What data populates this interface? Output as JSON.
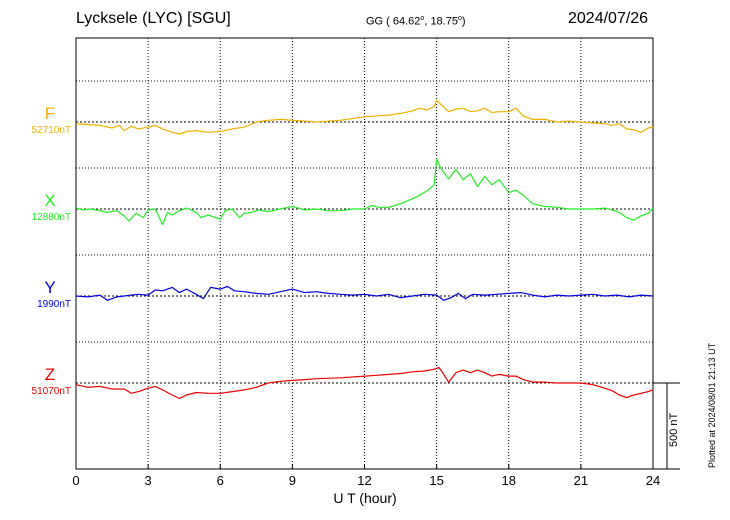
{
  "header": {
    "station": "Lycksele (LYC)  [SGU]",
    "coords_prefix": "GG ( 64.62",
    "coords_mid": ",  18.75",
    "coords_suffix": ")",
    "degree": "o",
    "date": "2024/07/26"
  },
  "footer": {
    "plotted_at": "Plotted at 2024/08/01 21:13 UT",
    "scale_label": "500 nT"
  },
  "chart_data": {
    "type": "line",
    "title": "Lycksele (LYC)  [SGU]",
    "xlabel": "U T (hour)",
    "ylabel": "",
    "xlim": [
      0,
      24
    ],
    "x_ticks": [
      0,
      3,
      6,
      9,
      12,
      15,
      18,
      21,
      24
    ],
    "x_tick_labels": [
      "0",
      "3",
      "6",
      "9",
      "12",
      "15",
      "18",
      "21",
      "24"
    ],
    "grid": true,
    "scale_bar_nT": 500,
    "units": "nT",
    "series": [
      {
        "name": "F",
        "baseline_label": "52710nT",
        "baseline_nT": 52710,
        "color": "#f0b000",
        "x": [
          0,
          0.5,
          1,
          1.5,
          1.8,
          2,
          2.3,
          2.6,
          3,
          3.3,
          3.6,
          4,
          4.3,
          4.6,
          5,
          5.5,
          6,
          6.5,
          7,
          7.5,
          8,
          8.5,
          9,
          9.5,
          10,
          11,
          12,
          12.5,
          13,
          13.5,
          14,
          14.3,
          14.6,
          14.9,
          15,
          15.2,
          15.5,
          15.8,
          16.1,
          16.4,
          16.7,
          17,
          17.3,
          17.6,
          18,
          18.3,
          18.6,
          19,
          19.5,
          20,
          20.5,
          21,
          21.5,
          22,
          22.3,
          22.6,
          22.9,
          23.2,
          23.5,
          23.8,
          24
        ],
        "values": [
          52700,
          52695,
          52690,
          52675,
          52690,
          52660,
          52685,
          52670,
          52680,
          52690,
          52670,
          52650,
          52640,
          52655,
          52660,
          52650,
          52655,
          52670,
          52680,
          52710,
          52720,
          52725,
          52720,
          52715,
          52710,
          52720,
          52740,
          52745,
          52750,
          52760,
          52775,
          52790,
          52780,
          52800,
          52835,
          52810,
          52770,
          52785,
          52790,
          52770,
          52775,
          52790,
          52765,
          52770,
          52770,
          52790,
          52745,
          52725,
          52725,
          52710,
          52715,
          52710,
          52705,
          52700,
          52690,
          52700,
          52670,
          52665,
          52650,
          52675,
          52680
        ]
      },
      {
        "name": "X",
        "baseline_label": "12880nT",
        "baseline_nT": 12880,
        "color": "#22ee22",
        "x": [
          0,
          0.3,
          0.6,
          1,
          1.3,
          1.7,
          2,
          2.2,
          2.5,
          2.8,
          3,
          3.3,
          3.6,
          3.8,
          4,
          4.3,
          4.6,
          5,
          5.2,
          5.5,
          6,
          6.2,
          6.5,
          6.8,
          7,
          7.3,
          7.6,
          8,
          8.5,
          9,
          9.5,
          10,
          10.5,
          11,
          11.5,
          12,
          12.3,
          12.6,
          13,
          13.5,
          14,
          14.3,
          14.6,
          14.9,
          15,
          15.2,
          15.5,
          15.8,
          16.1,
          16.4,
          16.7,
          17,
          17.3,
          17.6,
          18,
          18.3,
          18.6,
          19,
          19.5,
          20,
          20.5,
          21,
          21.5,
          22,
          22.3,
          22.6,
          22.9,
          23.2,
          23.5,
          23.8,
          24
        ],
        "values": [
          12885,
          12875,
          12880,
          12870,
          12860,
          12870,
          12840,
          12810,
          12855,
          12830,
          12875,
          12880,
          12790,
          12860,
          12845,
          12870,
          12885,
          12860,
          12830,
          12845,
          12820,
          12870,
          12880,
          12830,
          12855,
          12860,
          12875,
          12865,
          12880,
          12895,
          12875,
          12880,
          12870,
          12870,
          12880,
          12880,
          12900,
          12890,
          12890,
          12910,
          12940,
          12960,
          12985,
          13020,
          13170,
          13110,
          13055,
          13110,
          13050,
          13085,
          13010,
          13070,
          13020,
          13050,
          12975,
          12990,
          12960,
          12910,
          12895,
          12890,
          12880,
          12880,
          12880,
          12885,
          12875,
          12860,
          12830,
          12815,
          12840,
          12855,
          12885
        ]
      },
      {
        "name": "Y",
        "baseline_label": "1990nT",
        "baseline_nT": 1990,
        "color": "#0000dd",
        "x": [
          0,
          0.5,
          1,
          1.3,
          1.7,
          2,
          2.3,
          2.6,
          3,
          3.3,
          3.6,
          4,
          4.3,
          4.6,
          5,
          5.3,
          5.6,
          6,
          6.3,
          6.6,
          7,
          7.5,
          8,
          8.5,
          9,
          9.5,
          10,
          10.5,
          11,
          11.5,
          12,
          12.5,
          13,
          13.5,
          14,
          14.5,
          15,
          15.3,
          15.6,
          15.9,
          16.2,
          16.5,
          17,
          17.5,
          18,
          18.5,
          19,
          19.5,
          20,
          20.5,
          21,
          21.5,
          22,
          22.5,
          23,
          23.5,
          24
        ],
        "values": [
          1990,
          1985,
          1995,
          1965,
          1985,
          1990,
          1995,
          2000,
          1995,
          2025,
          2020,
          2040,
          2010,
          2030,
          2000,
          1975,
          2040,
          2030,
          2045,
          2020,
          2015,
          2005,
          2000,
          2015,
          2030,
          2010,
          2015,
          2005,
          2000,
          1995,
          2000,
          1990,
          2000,
          1980,
          1990,
          2000,
          1995,
          1965,
          1980,
          2005,
          1975,
          2000,
          1995,
          2000,
          2005,
          2010,
          1995,
          1985,
          1995,
          1990,
          1995,
          2000,
          1990,
          1995,
          1985,
          1995,
          1990
        ]
      },
      {
        "name": "Z",
        "baseline_label": "51070nT",
        "baseline_nT": 51070,
        "color": "#ee0000",
        "x": [
          0,
          0.5,
          1,
          1.5,
          2,
          2.3,
          2.6,
          3,
          3.3,
          3.6,
          4,
          4.3,
          4.6,
          5,
          5.5,
          6,
          6.5,
          7,
          7.5,
          8,
          8.5,
          9,
          9.5,
          10,
          11,
          12,
          12.5,
          13,
          13.5,
          14,
          14.5,
          14.9,
          15.1,
          15.3,
          15.5,
          15.8,
          16.1,
          16.4,
          16.7,
          17,
          17.3,
          17.6,
          18,
          18.3,
          18.6,
          19,
          19.5,
          20,
          20.5,
          21,
          21.5,
          22,
          22.3,
          22.6,
          22.9,
          23.2,
          23.5,
          23.8,
          24
        ],
        "values": [
          51060,
          51045,
          51050,
          51035,
          51035,
          51010,
          51020,
          51040,
          51050,
          51030,
          51000,
          50980,
          51000,
          51015,
          51010,
          51010,
          51020,
          51030,
          51045,
          51070,
          51080,
          51085,
          51090,
          51095,
          51100,
          51110,
          51115,
          51120,
          51125,
          51135,
          51140,
          51150,
          51160,
          51120,
          51075,
          51130,
          51145,
          51130,
          51145,
          51130,
          51110,
          51120,
          51110,
          51110,
          51090,
          51075,
          51075,
          51070,
          51070,
          51070,
          51060,
          51040,
          51025,
          51000,
          50985,
          51000,
          51010,
          51020,
          51030
        ]
      }
    ]
  }
}
